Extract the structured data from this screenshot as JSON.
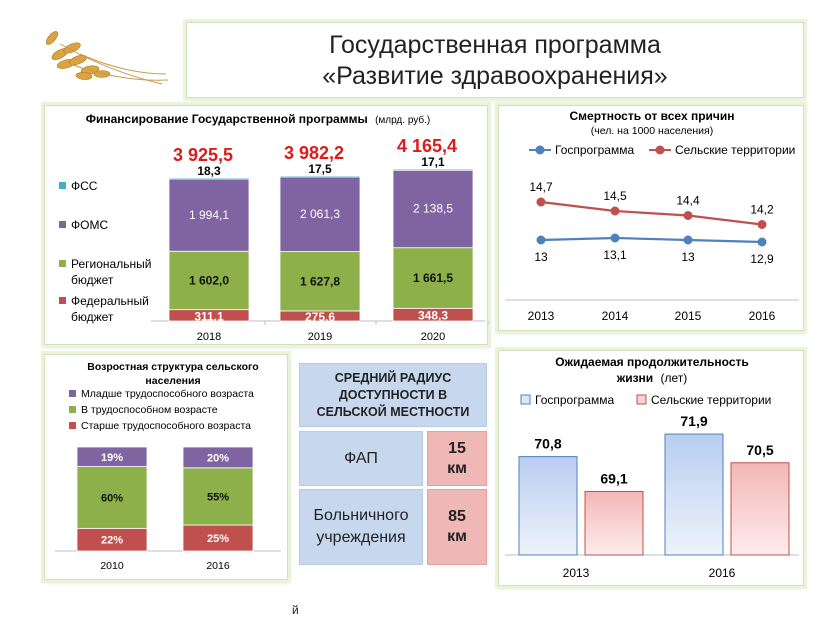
{
  "header": {
    "title_line1": "Государственная программа",
    "title_line2": "«Развитие здравоохранения»"
  },
  "decor": {
    "logo_icon": "wheat-ears-icon"
  },
  "colors": {
    "fss": "#3fb0c6",
    "foms": "#8064a2",
    "regional": "#8db04b",
    "federal": "#c0504d",
    "gosprogramma": "#4f81bd",
    "rural": "#c0504d",
    "total_red": "#e0191b",
    "radius_blue": "#c7d8ee",
    "radius_pink": "#efb7b5"
  },
  "financing": {
    "title": "Финансирование Государственной программы",
    "unit": "(млрд. руб.)",
    "legend": [
      {
        "label": "ФСС",
        "color": "#3fb0c6"
      },
      {
        "label": "ФОМС",
        "color": "#8064a2"
      },
      {
        "label": "Региональный бюджет",
        "color": "#8db04b"
      },
      {
        "label": "Федеральный бюджет",
        "color": "#c0504d"
      }
    ],
    "years": [
      "2018",
      "2019",
      "2020"
    ],
    "totals": [
      "3 925,5",
      "3 982,2",
      "4 165,4"
    ],
    "fss_labels": [
      "18,3",
      "17,5",
      "17,1"
    ],
    "foms_labels": [
      "1 994,1",
      "2 061,3",
      "2 138,5"
    ],
    "regional_labels": [
      "1 602,0",
      "1 627,8",
      "1 661,5"
    ],
    "federal_labels": [
      "311,1",
      "275,6",
      "348,3"
    ]
  },
  "mortality": {
    "title": "Смертность от всех причин",
    "subtitle": "(чел. на 1000 населения)",
    "legend": [
      "Госпрограмма",
      "Сельские территории"
    ],
    "x_labels": [
      "2013",
      "2014",
      "2015",
      "2016"
    ],
    "gos_labels": [
      "13",
      "13,1",
      "13",
      "12,9"
    ],
    "rural_labels": [
      "14,7",
      "14,5",
      "14,4",
      "14,2"
    ]
  },
  "age": {
    "title_line1": "Возростная структура сельского",
    "title_line2": "населения",
    "legend": [
      {
        "label": "Младше трудоспособного возраста",
        "color": "#8064a2"
      },
      {
        "label": "В трудоспособном  возрасте",
        "color": "#8db04b"
      },
      {
        "label": "Старше трудоспособного возраста",
        "color": "#c0504d"
      }
    ],
    "years": [
      "2010",
      "2016"
    ],
    "young_labels": [
      "19%",
      "20%"
    ],
    "working_labels": [
      "60%",
      "55%"
    ],
    "old_labels": [
      "22%",
      "25%"
    ]
  },
  "radius": {
    "header_line1": "СРЕДНИЙ РАДИУС",
    "header_line2": "ДОСТУПНОСТИ В",
    "header_line3": "СЕЛЬСКОЙ МЕСТНОСТИ",
    "row1_label": "ФАП",
    "row1_value_line1": "15",
    "row1_value_line2": "км",
    "row2_label_line1": "Больничного",
    "row2_label_line2": "учреждения",
    "row2_value_line1": "85",
    "row2_value_line2": "км"
  },
  "life": {
    "title_line1": "Ожидаемая продолжительность",
    "title_line2_bold": "жизни",
    "title_line2_unit": "(лет)",
    "legend": [
      "Госпрограмма",
      "Сельские территории"
    ],
    "years": [
      "2013",
      "2016"
    ],
    "gos_labels": [
      "70,8",
      "71,9"
    ],
    "rural_labels": [
      "69,1",
      "70,5"
    ]
  },
  "page_mark": "й",
  "chart_data": [
    {
      "type": "bar",
      "title": "Финансирование Государственной программы (млрд. руб.)",
      "categories": [
        "2018",
        "2019",
        "2020"
      ],
      "stacked": true,
      "series": [
        {
          "name": "Федеральный бюджет",
          "values": [
            311.1,
            275.6,
            348.3
          ]
        },
        {
          "name": "Региональный бюджет",
          "values": [
            1602.0,
            1627.8,
            1661.5
          ]
        },
        {
          "name": "ФОМС",
          "values": [
            1994.1,
            2061.3,
            2138.5
          ]
        },
        {
          "name": "ФСС",
          "values": [
            18.3,
            17.5,
            17.1
          ]
        }
      ],
      "totals": [
        3925.5,
        3982.2,
        4165.4
      ],
      "legend": "left"
    },
    {
      "type": "line",
      "title": "Смертность от всех причин",
      "subtitle": "(чел. на 1000 населения)",
      "x": [
        "2013",
        "2014",
        "2015",
        "2016"
      ],
      "series": [
        {
          "name": "Госпрограмма",
          "values": [
            13,
            13.1,
            13,
            12.9
          ]
        },
        {
          "name": "Сельские территории",
          "values": [
            14.7,
            14.5,
            14.4,
            14.2
          ]
        }
      ],
      "legend": "top",
      "grid": false
    },
    {
      "type": "bar",
      "title": "Возростная структура сельского населения",
      "categories": [
        "2010",
        "2016"
      ],
      "stacked": true,
      "percent": true,
      "series": [
        {
          "name": "Старше трудоспособного возраста",
          "values": [
            22,
            25
          ]
        },
        {
          "name": "В трудоспособном  возрасте",
          "values": [
            60,
            55
          ]
        },
        {
          "name": "Младше трудоспособного возраста",
          "values": [
            19,
            20
          ]
        }
      ],
      "legend": "top"
    },
    {
      "type": "bar",
      "title": "Ожидаемая продолжительность жизни (лет)",
      "categories": [
        "2013",
        "2016"
      ],
      "series": [
        {
          "name": "Госпрограмма",
          "values": [
            70.8,
            71.9
          ]
        },
        {
          "name": "Сельские территории",
          "values": [
            69.1,
            70.5
          ]
        }
      ],
      "legend": "top"
    }
  ]
}
